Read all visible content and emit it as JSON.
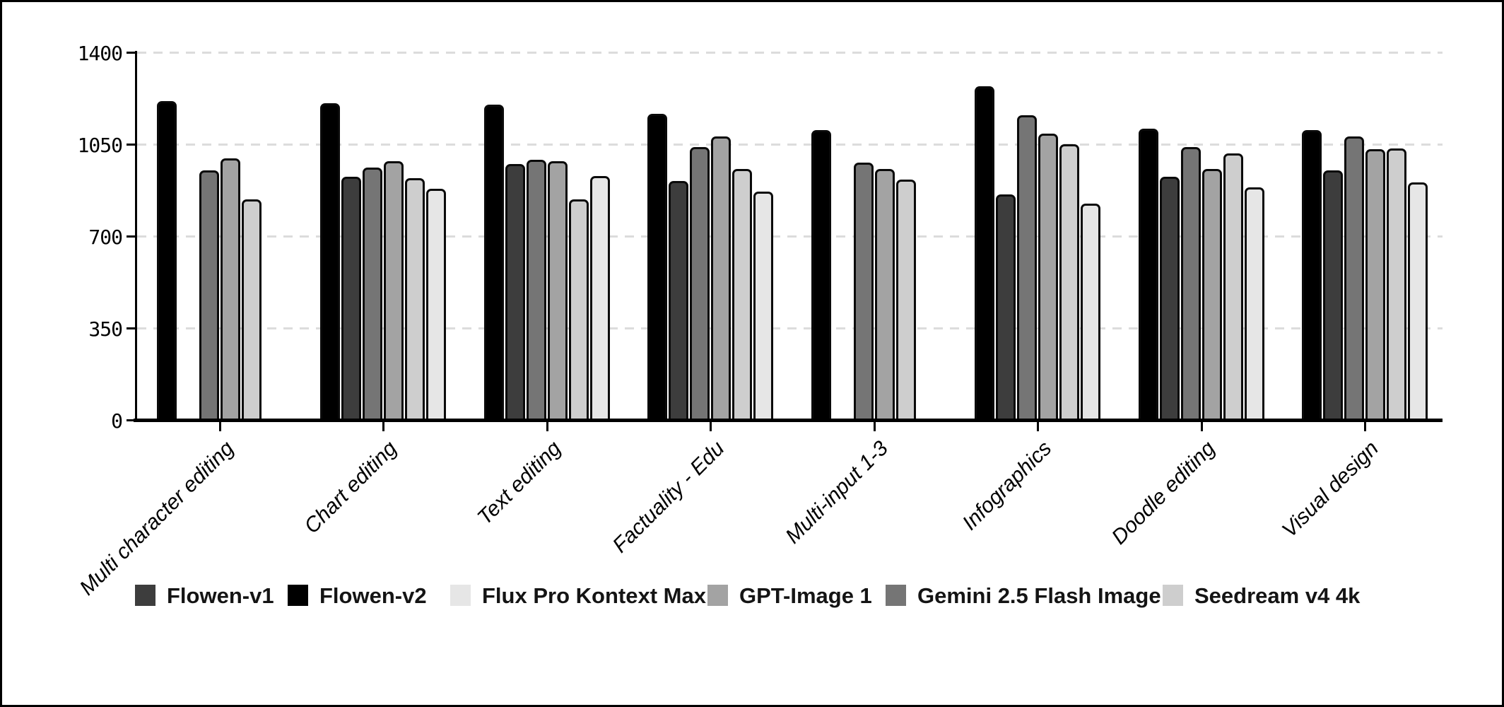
{
  "figure": {
    "background": "#ffffff",
    "frame_border_color": "#000000",
    "gridline_color": "#dcdcdc",
    "axis_color": "#000000"
  },
  "chart_data": {
    "type": "bar",
    "title": "",
    "xlabel": "",
    "ylabel": "",
    "ylim": [
      0,
      1400
    ],
    "y_ticks": [
      "1400",
      "1050",
      "700",
      "350",
      "0"
    ],
    "grid": "horizontal-dashed",
    "legend_position": "bottom",
    "categories": [
      "Multi character editing",
      "Chart editing",
      "Text editing",
      "Factuality - Edu",
      "Multi-input 1-3",
      "Infographics",
      "Doodle editing",
      "Visual design"
    ],
    "series": [
      {
        "name": "Flowen-v1",
        "color": "#3d3d3d",
        "values": [
          null,
          925,
          975,
          910,
          null,
          860,
          925,
          950
        ]
      },
      {
        "name": "Flowen-v2",
        "color": "#000000",
        "values": [
          1215,
          1205,
          1200,
          1165,
          1105,
          1270,
          1110,
          1105
        ]
      },
      {
        "name": "Flux Pro Kontext Max",
        "color": "#e6e6e6",
        "values": [
          null,
          880,
          930,
          870,
          null,
          825,
          885,
          905
        ]
      },
      {
        "name": "GPT-Image 1",
        "color": "#a3a3a3",
        "values": [
          995,
          985,
          985,
          1080,
          955,
          1090,
          955,
          1030
        ]
      },
      {
        "name": "Gemini 2.5 Flash Image",
        "color": "#757575",
        "values": [
          950,
          960,
          990,
          1040,
          980,
          1160,
          1040,
          1080
        ]
      },
      {
        "name": "Seedream v4 4k",
        "color": "#cecece",
        "values": [
          840,
          920,
          840,
          955,
          915,
          1050,
          1015,
          1035
        ]
      }
    ],
    "bar_display_order": [
      "Flowen-v2",
      "Flowen-v1",
      "Gemini 2.5 Flash Image",
      "GPT-Image 1",
      "Seedream v4 4k",
      "Flux Pro Kontext Max"
    ],
    "legend_order": [
      "Flowen-v1",
      "Flowen-v2",
      "Flux Pro Kontext Max",
      "GPT-Image 1",
      "Gemini 2.5 Flash Image",
      "Seedream v4 4k"
    ]
  }
}
